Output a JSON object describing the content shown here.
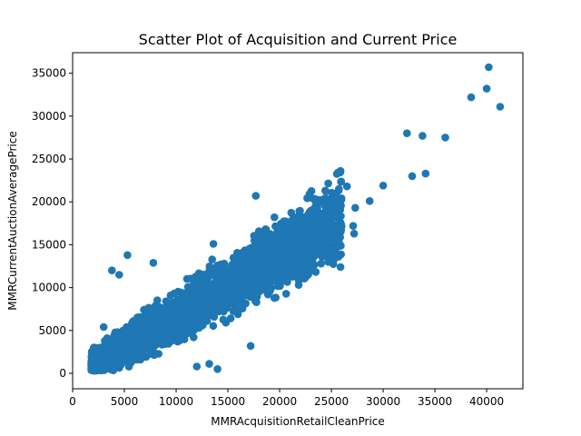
{
  "chart_data": {
    "type": "scatter",
    "title": "Scatter Plot of Acquisition and Current Price",
    "xlabel": "MMRAcquisitionRetailCleanPrice",
    "ylabel": "MMRCurrentAuctionAveragePrice",
    "xlim": [
      0,
      43500
    ],
    "ylim": [
      -1800,
      37400
    ],
    "xticks": [
      0,
      5000,
      10000,
      15000,
      20000,
      25000,
      30000,
      35000,
      40000
    ],
    "yticks": [
      0,
      5000,
      10000,
      15000,
      20000,
      25000,
      30000,
      35000
    ],
    "grid": false,
    "legend": "none",
    "marker_color": "#1f77b4",
    "dense_cluster": {
      "description_points_sampled": true,
      "centerline_slope": 0.72,
      "centerline_intercept": -600,
      "x_range": [
        1800,
        26000
      ]
    },
    "points": [
      [
        40200,
        35700
      ],
      [
        38500,
        32200
      ],
      [
        40000,
        33200
      ],
      [
        41300,
        31100
      ],
      [
        32300,
        28000
      ],
      [
        33800,
        27700
      ],
      [
        36000,
        27500
      ],
      [
        34100,
        23300
      ],
      [
        32800,
        23000
      ],
      [
        30000,
        21900
      ],
      [
        28700,
        20100
      ],
      [
        26500,
        21800
      ],
      [
        27300,
        19300
      ],
      [
        27100,
        17200
      ],
      [
        24500,
        19800
      ],
      [
        25300,
        16100
      ],
      [
        25800,
        15100
      ],
      [
        27200,
        16300
      ],
      [
        25700,
        13600
      ],
      [
        24700,
        13000
      ],
      [
        24000,
        12800
      ],
      [
        22000,
        12000
      ],
      [
        21200,
        11300
      ],
      [
        17200,
        3200
      ],
      [
        13200,
        1100
      ],
      [
        14000,
        500
      ],
      [
        12000,
        800
      ],
      [
        5300,
        13800
      ],
      [
        3800,
        12000
      ],
      [
        4500,
        11500
      ],
      [
        7800,
        12900
      ],
      [
        13600,
        15100
      ],
      [
        17700,
        20700
      ],
      [
        19500,
        18200
      ],
      [
        23500,
        20000
      ],
      [
        22500,
        16500
      ],
      [
        20500,
        14500
      ],
      [
        1800,
        1000
      ],
      [
        2500,
        900
      ],
      [
        3000,
        5400
      ],
      [
        2800,
        1600
      ]
    ]
  }
}
